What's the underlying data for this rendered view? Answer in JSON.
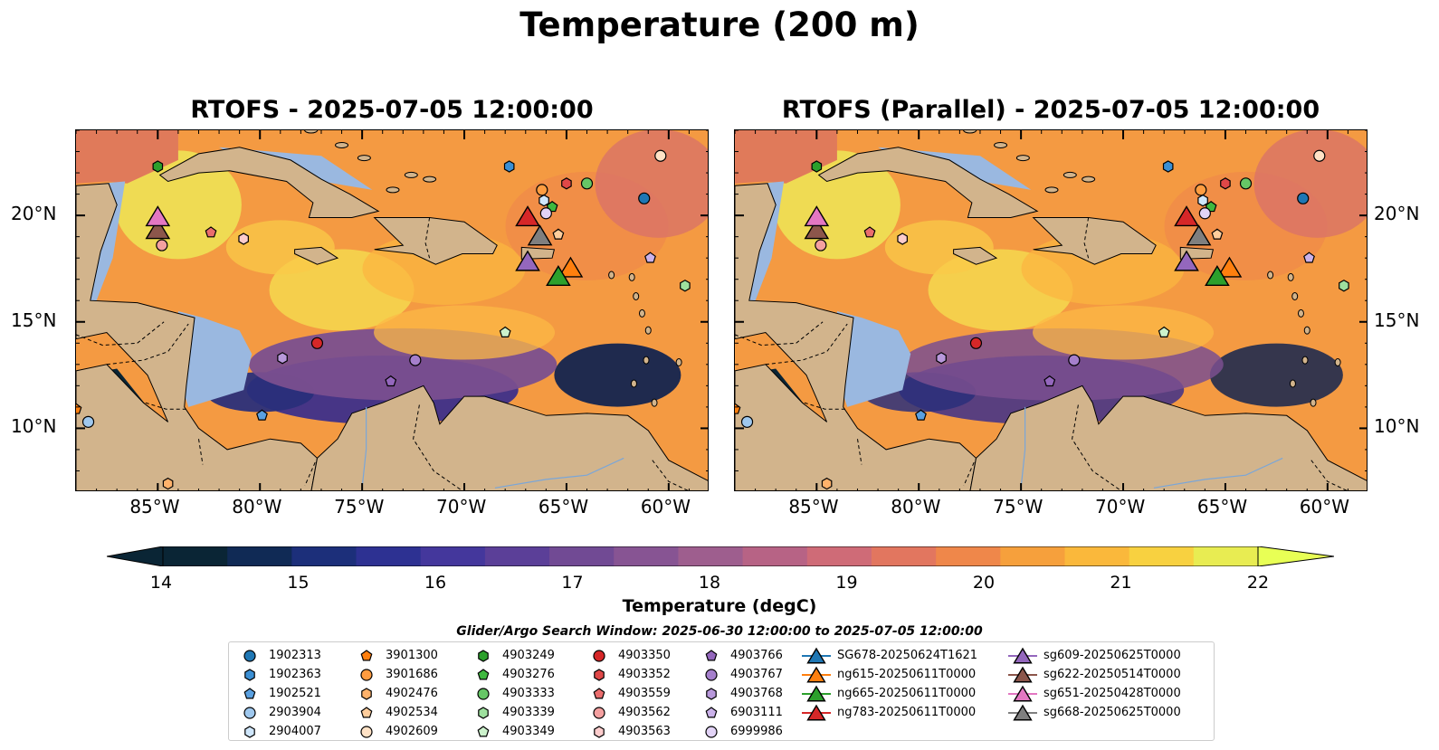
{
  "figure": {
    "title": "Temperature (200 m)",
    "panels": [
      {
        "id": "left",
        "title": "RTOFS - 2025-07-05 12:00:00"
      },
      {
        "id": "right",
        "title": "RTOFS (Parallel) - 2025-07-05 12:00:00"
      }
    ],
    "lon_ticks": [
      "85°W",
      "80°W",
      "75°W",
      "70°W",
      "65°W",
      "60°W"
    ],
    "lat_ticks": [
      "20°N",
      "15°N",
      "10°N"
    ],
    "colorbar": {
      "label": "Temperature (degC)",
      "ticks": [
        "14",
        "15",
        "16",
        "17",
        "18",
        "19",
        "20",
        "21",
        "22"
      ],
      "min": 14,
      "max": 22
    },
    "search_window": "Glider/Argo Search Window: 2025-06-30 12:00:00 to 2025-07-05 12:00:00"
  },
  "colors": {
    "land": "#d2b48c",
    "shallow": "#9ab8e0",
    "outline": "#000000"
  },
  "legend": {
    "argo": [
      {
        "name": "1902313",
        "shape": "circle",
        "color": "#1f77b4"
      },
      {
        "name": "1902363",
        "shape": "hexagon",
        "color": "#3b8fd4"
      },
      {
        "name": "1902521",
        "shape": "pentagon",
        "color": "#5aa0e0"
      },
      {
        "name": "2903904",
        "shape": "circle",
        "color": "#9fc8ee"
      },
      {
        "name": "2904007",
        "shape": "hexagon",
        "color": "#cfe6fb"
      },
      {
        "name": "3901300",
        "shape": "pentagon",
        "color": "#ff7f0e"
      },
      {
        "name": "3901686",
        "shape": "circle",
        "color": "#ff9c40"
      },
      {
        "name": "4902476",
        "shape": "hexagon",
        "color": "#ffb26b"
      },
      {
        "name": "4902534",
        "shape": "pentagon",
        "color": "#ffcd9c"
      },
      {
        "name": "4902609",
        "shape": "circle",
        "color": "#ffe2c6"
      },
      {
        "name": "4903249",
        "shape": "hexagon",
        "color": "#2ca02c"
      },
      {
        "name": "4903276",
        "shape": "pentagon",
        "color": "#3fb83f"
      },
      {
        "name": "4903333",
        "shape": "circle",
        "color": "#66c666"
      },
      {
        "name": "4903339",
        "shape": "hexagon",
        "color": "#9ee09e"
      },
      {
        "name": "4903349",
        "shape": "pentagon",
        "color": "#ccf2cc"
      },
      {
        "name": "4903350",
        "shape": "circle",
        "color": "#d62728"
      },
      {
        "name": "4903352",
        "shape": "hexagon",
        "color": "#e04848"
      },
      {
        "name": "4903559",
        "shape": "pentagon",
        "color": "#ea6d6d"
      },
      {
        "name": "4903562",
        "shape": "circle",
        "color": "#f4a0a0"
      },
      {
        "name": "4903563",
        "shape": "hexagon",
        "color": "#fccccc"
      },
      {
        "name": "4903766",
        "shape": "pentagon",
        "color": "#9467bd"
      },
      {
        "name": "4903767",
        "shape": "circle",
        "color": "#a57fcc"
      },
      {
        "name": "4903768",
        "shape": "hexagon",
        "color": "#b898db"
      },
      {
        "name": "6903111",
        "shape": "pentagon",
        "color": "#cbb2ea"
      },
      {
        "name": "6999986",
        "shape": "circle",
        "color": "#e2d3f6"
      }
    ],
    "gliders": [
      {
        "name": "SG678-20250624T1621",
        "color": "#1f77b4"
      },
      {
        "name": "ng615-20250611T0000",
        "color": "#ff7f0e"
      },
      {
        "name": "ng665-20250611T0000",
        "color": "#2ca02c"
      },
      {
        "name": "ng783-20250611T0000",
        "color": "#d62728"
      },
      {
        "name": "sg609-20250625T0000",
        "color": "#9467bd"
      },
      {
        "name": "sg622-20250514T0000",
        "color": "#8c564b"
      },
      {
        "name": "sg651-20250428T0000",
        "color": "#e377c2"
      },
      {
        "name": "sg668-20250625T0000",
        "color": "#7f7f7f"
      }
    ]
  },
  "map_data": {
    "extent_lon": [
      -89,
      -58
    ],
    "extent_lat": [
      7,
      24
    ],
    "argo_positions": [
      {
        "name": "1902313",
        "lon": -61.2,
        "lat": 20.8
      },
      {
        "name": "1902363",
        "lon": -67.8,
        "lat": 22.3
      },
      {
        "name": "1902521",
        "lon": -79.9,
        "lat": 10.6
      },
      {
        "name": "2903904",
        "lon": -88.4,
        "lat": 10.3
      },
      {
        "name": "2904007",
        "lon": -66.1,
        "lat": 20.7
      },
      {
        "name": "3901300",
        "lon": -89.0,
        "lat": 10.9
      },
      {
        "name": "3901686",
        "lon": -66.2,
        "lat": 21.2
      },
      {
        "name": "4902476",
        "lon": -84.5,
        "lat": 7.4
      },
      {
        "name": "4902534",
        "lon": -65.4,
        "lat": 19.1
      },
      {
        "name": "4902609",
        "lon": -60.4,
        "lat": 22.8
      },
      {
        "name": "4903249",
        "lon": -85.0,
        "lat": 22.3
      },
      {
        "name": "4903276",
        "lon": -65.7,
        "lat": 20.4
      },
      {
        "name": "4903333",
        "lon": -64.0,
        "lat": 21.5
      },
      {
        "name": "4903339",
        "lon": -59.2,
        "lat": 16.7
      },
      {
        "name": "4903349",
        "lon": -68.0,
        "lat": 14.5
      },
      {
        "name": "4903350",
        "lon": -77.2,
        "lat": 14.0
      },
      {
        "name": "4903352",
        "lon": -65.0,
        "lat": 21.5
      },
      {
        "name": "4903559",
        "lon": -82.4,
        "lat": 19.2
      },
      {
        "name": "4903562",
        "lon": -84.8,
        "lat": 18.6
      },
      {
        "name": "4903563",
        "lon": -80.8,
        "lat": 18.9
      },
      {
        "name": "4903766",
        "lon": -73.6,
        "lat": 12.2
      },
      {
        "name": "4903767",
        "lon": -72.4,
        "lat": 13.2
      },
      {
        "name": "4903768",
        "lon": -78.9,
        "lat": 13.3
      },
      {
        "name": "6903111",
        "lon": -60.9,
        "lat": 18.0
      },
      {
        "name": "6999986",
        "lon": -66.0,
        "lat": 20.1
      }
    ],
    "glider_positions": [
      {
        "name": "ng615-20250611T0000",
        "lon": -64.8,
        "lat": 17.5
      },
      {
        "name": "ng665-20250611T0000",
        "lon": -65.4,
        "lat": 17.1
      },
      {
        "name": "ng783-20250611T0000",
        "lon": -66.9,
        "lat": 19.9
      },
      {
        "name": "sg609-20250625T0000",
        "lon": -66.9,
        "lat": 17.8
      },
      {
        "name": "sg622-20250514T0000",
        "lon": -85.0,
        "lat": 19.3
      },
      {
        "name": "sg651-20250428T0000",
        "lon": -85.0,
        "lat": 19.9
      },
      {
        "name": "sg668-20250625T0000",
        "lon": -66.3,
        "lat": 19.0
      }
    ]
  }
}
